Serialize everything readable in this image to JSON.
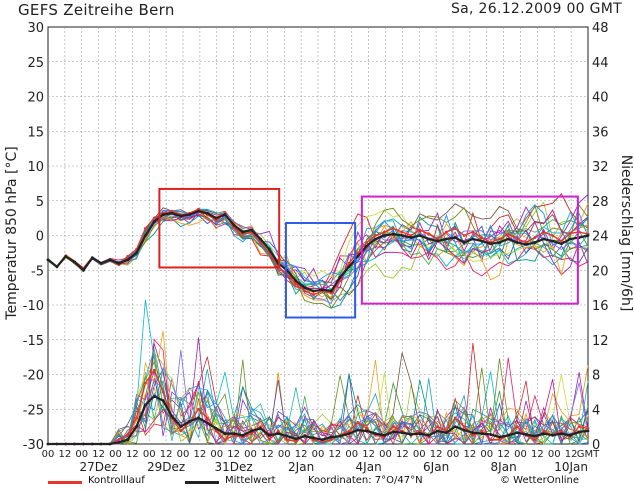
{
  "header": {
    "title": "GEFS Zeitreihe Bern",
    "run": "Sa, 26.12.2009 00 GMT"
  },
  "axes": {
    "left_label": "Temperatur 850 hPa [°C]",
    "right_label": "Niederschlag [mm/6h]"
  },
  "legend": {
    "control_label": "Kontrolllauf",
    "mean_label": "Mittelwert",
    "coords_label": "Koordinaten: 7°O/47°N",
    "copyright": "© WetterOnline",
    "control_color": "#e8342a",
    "mean_color": "#222222"
  },
  "colors": {
    "box_red": "#e02020",
    "box_blue": "#2f5bea",
    "box_magenta": "#d020d0",
    "members": [
      "#1aa3c8",
      "#2ca02c",
      "#9acd32",
      "#8b2be2",
      "#d62728",
      "#ff8c00",
      "#00bcd4",
      "#e91e63",
      "#3f51b5",
      "#9c27b0",
      "#4caf50",
      "#cddc39",
      "#795548",
      "#009688",
      "#f4a020",
      "#7b68ee",
      "#20b2aa",
      "#c71585",
      "#6b8e23",
      "#1e90ff"
    ]
  },
  "chart_data": {
    "type": "line",
    "title": "GEFS Zeitreihe Bern",
    "ylabel": "Temperatur 850 hPa [°C]",
    "ylabel_right": "Niederschlag [mm/6h]",
    "ylim": [
      -30,
      30
    ],
    "ylim_right": [
      0,
      48
    ],
    "yticks": [
      30,
      25,
      20,
      15,
      10,
      5,
      0,
      -5,
      -10,
      -15,
      -20,
      -25,
      -30
    ],
    "yticks_right": [
      48,
      44,
      40,
      36,
      32,
      28,
      24,
      20,
      16,
      12,
      8,
      4,
      0
    ],
    "x_hour_labels": [
      "00",
      "12",
      "00",
      "12",
      "00",
      "12",
      "00",
      "12",
      "00",
      "12",
      "00",
      "12",
      "00",
      "12",
      "00",
      "12",
      "00",
      "12",
      "00",
      "12",
      "00",
      "12",
      "00",
      "12",
      "00",
      "12",
      "00",
      "12",
      "00",
      "12",
      "00",
      "12",
      "GMT"
    ],
    "x_date_labels": [
      "27Dez",
      "29Dez",
      "31Dez",
      "2Jan",
      "4Jan",
      "6Jan",
      "8Jan",
      "10Jan"
    ],
    "grid": true,
    "mean_temperature": [
      -3.5,
      -4.5,
      -3.0,
      -3.8,
      -5.0,
      -3.2,
      -4.0,
      -3.5,
      -4.0,
      -3.5,
      -2.5,
      0.0,
      2.0,
      3.0,
      3.2,
      2.8,
      3.0,
      3.5,
      3.2,
      2.5,
      3.0,
      1.5,
      0.5,
      0.8,
      -0.5,
      -2.0,
      -4.0,
      -5.0,
      -6.5,
      -7.5,
      -8.0,
      -7.8,
      -8.0,
      -6.0,
      -4.5,
      -3.0,
      -1.5,
      -0.5,
      0.0,
      0.2,
      0.0,
      -0.3,
      0.0,
      -0.5,
      -0.8,
      -0.5,
      -0.3,
      -1.0,
      -0.5,
      -0.8,
      -1.2,
      -1.0,
      -0.5,
      -1.0,
      -1.3,
      -1.0,
      -0.5,
      -0.8,
      -1.2,
      -0.5,
      -0.3,
      0.0
    ],
    "mean_precip": [
      0,
      0,
      0,
      0,
      0,
      0,
      0,
      0,
      0.2,
      0.5,
      2.0,
      4.5,
      5.5,
      5.0,
      3.2,
      2.0,
      2.6,
      3.0,
      2.4,
      1.8,
      1.2,
      1.2,
      1.0,
      1.5,
      1.8,
      1.0,
      1.2,
      0.9,
      0.6,
      0.9,
      0.7,
      0.5,
      0.8,
      0.9,
      1.2,
      1.6,
      1.5,
      1.2,
      1.0,
      1.4,
      1.3,
      1.1,
      1.2,
      1.0,
      1.5,
      1.3,
      2.0,
      1.6,
      1.3,
      1.2,
      1.1,
      0.8,
      1.0,
      1.3,
      1.1,
      0.9,
      1.2,
      1.0,
      1.2,
      1.0,
      1.4,
      1.5
    ],
    "control_temperature": [
      -3.5,
      -4.5,
      -3.0,
      -3.8,
      -5.0,
      -3.2,
      -4.0,
      -3.5,
      -4.2,
      -3.0,
      -2.0,
      1.0,
      2.5,
      3.2,
      3.5,
      3.0,
      3.2,
      3.8,
      3.0,
      2.2,
      3.2,
      1.2,
      0.2,
      0.5,
      -1.0,
      -2.5,
      -4.5,
      -5.5,
      -7.0,
      -8.0,
      -8.5,
      -8.0,
      -8.3,
      -6.5,
      -4.0,
      -2.5,
      -1.0,
      0.0,
      0.5,
      1.0,
      0.5,
      0.0,
      0.8,
      0.2,
      -0.5,
      0.5,
      1.0,
      0.0,
      0.5,
      -0.3,
      -1.0,
      -0.5,
      0.2,
      -0.5,
      -1.0,
      -0.3,
      0.5,
      0.0,
      -0.8,
      0.3,
      0.5,
      0.2
    ],
    "control_precip": [
      0,
      0,
      0,
      0,
      0,
      0,
      0,
      0,
      0.5,
      1.0,
      3.0,
      7.0,
      8.5,
      6.0,
      3.0,
      1.5,
      2.5,
      4.0,
      3.0,
      1.5,
      0.5,
      1.0,
      0.8,
      1.2,
      2.0,
      0.5,
      1.5,
      0.5,
      0.3,
      1.0,
      0.5,
      0.2,
      0.5,
      1.0,
      1.5,
      2.5,
      1.8,
      1.0,
      0.8,
      2.0,
      1.5,
      1.0,
      1.5,
      0.8,
      2.0,
      1.5,
      3.0,
      2.0,
      1.0,
      1.5,
      0.5,
      0.5,
      1.0,
      2.0,
      1.0,
      0.5,
      1.5,
      1.0,
      1.5,
      0.8,
      2.0,
      1.8
    ]
  }
}
